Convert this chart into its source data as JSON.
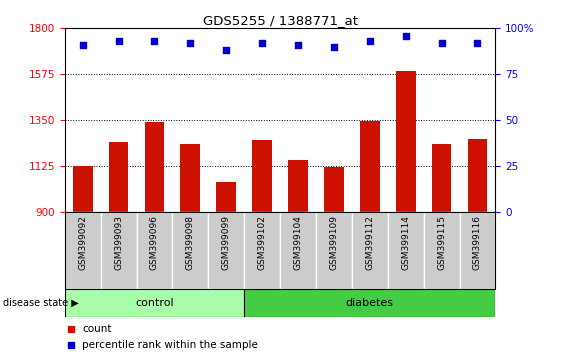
{
  "title": "GDS5255 / 1388771_at",
  "categories": [
    "GSM399092",
    "GSM399093",
    "GSM399096",
    "GSM399098",
    "GSM399099",
    "GSM399102",
    "GSM399104",
    "GSM399109",
    "GSM399112",
    "GSM399114",
    "GSM399115",
    "GSM399116"
  ],
  "bar_values": [
    1128,
    1245,
    1340,
    1235,
    1050,
    1255,
    1155,
    1120,
    1345,
    1590,
    1235,
    1260
  ],
  "percentile_values": [
    91,
    93,
    93,
    92,
    88,
    92,
    91,
    90,
    93,
    96,
    92,
    92
  ],
  "bar_color": "#cc1100",
  "dot_color": "#0000cc",
  "ylim_left": [
    900,
    1800
  ],
  "ylim_right": [
    0,
    100
  ],
  "yticks_left": [
    900,
    1125,
    1350,
    1575,
    1800
  ],
  "yticks_right": [
    0,
    25,
    50,
    75,
    100
  ],
  "grid_lines": [
    1125,
    1350,
    1575
  ],
  "control_samples": 5,
  "diabetes_samples": 7,
  "control_color": "#aaffaa",
  "diabetes_color": "#44cc44",
  "label_control": "control",
  "label_diabetes": "diabetes",
  "disease_state_label": "disease state",
  "legend_count": "count",
  "legend_percentile": "percentile rank within the sample",
  "xtick_bg_color": "#cccccc",
  "xtick_border_color": "#ffffff"
}
